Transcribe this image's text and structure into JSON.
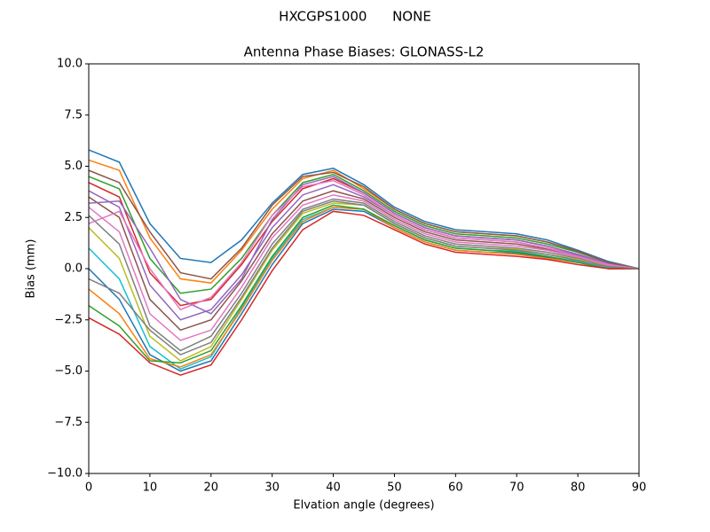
{
  "chart_data": {
    "type": "line",
    "suptitle": "HXCGPS1000      NONE",
    "title": "Antenna Phase Biases: GLONASS-L2",
    "xlabel": "Elvation angle (degrees)",
    "ylabel": "Bias (mm)",
    "x": [
      0,
      5,
      10,
      15,
      20,
      25,
      30,
      35,
      40,
      45,
      50,
      55,
      60,
      65,
      70,
      75,
      80,
      85,
      90
    ],
    "xlim": [
      0,
      90
    ],
    "xticks": [
      0,
      10,
      20,
      30,
      40,
      50,
      60,
      70,
      80,
      90
    ],
    "ylim": [
      -10,
      10
    ],
    "yticks": [
      {
        "value": -10,
        "label": "−10.0"
      },
      {
        "value": -7.5,
        "label": "−7.5"
      },
      {
        "value": -5,
        "label": "−5.0"
      },
      {
        "value": -2.5,
        "label": "−2.5"
      },
      {
        "value": 0,
        "label": "0.0"
      },
      {
        "value": 2.5,
        "label": "2.5"
      },
      {
        "value": 5,
        "label": "5.0"
      },
      {
        "value": 7.5,
        "label": "7.5"
      },
      {
        "value": 10,
        "label": "10.0"
      }
    ],
    "grid": false,
    "series": [
      {
        "color": "#1f77b4",
        "values": [
          5.8,
          5.2,
          2.2,
          0.5,
          0.3,
          1.4,
          3.2,
          4.6,
          4.9,
          4.1,
          3.0,
          2.3,
          1.9,
          1.8,
          1.7,
          1.4,
          0.9,
          0.35,
          0
        ]
      },
      {
        "color": "#ff7f0e",
        "values": [
          5.3,
          4.8,
          1.5,
          -0.5,
          -0.7,
          0.9,
          2.9,
          4.4,
          4.8,
          3.9,
          2.9,
          2.2,
          1.8,
          1.7,
          1.6,
          1.3,
          0.85,
          0.3,
          0
        ]
      },
      {
        "color": "#2ca02c",
        "values": [
          4.5,
          3.9,
          0.5,
          -1.2,
          -1.0,
          0.5,
          2.6,
          4.2,
          4.6,
          3.8,
          2.8,
          2.1,
          1.7,
          1.6,
          1.5,
          1.2,
          0.8,
          0.3,
          0
        ]
      },
      {
        "color": "#d62728",
        "values": [
          4.2,
          3.5,
          -0.2,
          -1.8,
          -1.5,
          0.2,
          2.3,
          3.9,
          4.4,
          3.7,
          2.7,
          2.0,
          1.6,
          1.5,
          1.4,
          1.1,
          0.7,
          0.25,
          0
        ]
      },
      {
        "color": "#9467bd",
        "values": [
          3.8,
          3.0,
          -0.8,
          -2.5,
          -2.0,
          -0.3,
          2.0,
          3.6,
          4.1,
          3.5,
          2.6,
          1.9,
          1.5,
          1.4,
          1.3,
          1.0,
          0.65,
          0.2,
          0
        ]
      },
      {
        "color": "#8c564b",
        "values": [
          3.5,
          2.5,
          -1.5,
          -3.0,
          -2.5,
          -0.6,
          1.7,
          3.3,
          3.8,
          3.4,
          2.5,
          1.8,
          1.4,
          1.3,
          1.2,
          0.95,
          0.6,
          0.2,
          0
        ]
      },
      {
        "color": "#e377c2",
        "values": [
          3.0,
          1.8,
          -2.2,
          -3.5,
          -3.0,
          -0.9,
          1.5,
          3.1,
          3.6,
          3.3,
          2.4,
          1.7,
          1.3,
          1.2,
          1.1,
          0.9,
          0.55,
          0.15,
          0
        ]
      },
      {
        "color": "#7f7f7f",
        "values": [
          2.6,
          1.2,
          -2.8,
          -4.0,
          -3.3,
          -1.2,
          1.2,
          2.9,
          3.4,
          3.2,
          2.3,
          1.6,
          1.2,
          1.1,
          1.0,
          0.8,
          0.5,
          0.1,
          0
        ]
      },
      {
        "color": "#bcbd22",
        "values": [
          2.0,
          0.5,
          -3.3,
          -4.5,
          -3.8,
          -1.5,
          0.9,
          2.7,
          3.2,
          3.1,
          2.2,
          1.5,
          1.1,
          1.0,
          0.95,
          0.7,
          0.45,
          0.1,
          0
        ]
      },
      {
        "color": "#17becf",
        "values": [
          1.0,
          -0.5,
          -3.8,
          -4.9,
          -4.3,
          -1.9,
          0.5,
          2.4,
          3.0,
          2.9,
          2.1,
          1.4,
          1.0,
          0.9,
          0.85,
          0.6,
          0.35,
          0.05,
          0
        ]
      },
      {
        "color": "#1f77b4",
        "values": [
          0.0,
          -1.5,
          -4.2,
          -5.0,
          -4.5,
          -2.2,
          0.2,
          2.2,
          2.9,
          2.8,
          2.0,
          1.3,
          0.9,
          0.8,
          0.75,
          0.55,
          0.3,
          0,
          0
        ]
      },
      {
        "color": "#ff7f0e",
        "values": [
          -1.0,
          -2.2,
          -4.4,
          -4.8,
          -4.2,
          -2.0,
          0.4,
          2.3,
          3.0,
          2.9,
          2.0,
          1.3,
          0.9,
          0.8,
          0.7,
          0.5,
          0.3,
          0,
          0
        ]
      },
      {
        "color": "#2ca02c",
        "values": [
          -1.8,
          -2.8,
          -4.5,
          -4.6,
          -4.0,
          -1.8,
          0.6,
          2.5,
          3.1,
          2.9,
          2.1,
          1.4,
          1.0,
          0.9,
          0.8,
          0.6,
          0.3,
          0,
          0
        ]
      },
      {
        "color": "#d62728",
        "values": [
          -2.4,
          -3.2,
          -4.6,
          -5.2,
          -4.7,
          -2.5,
          -0.1,
          1.9,
          2.8,
          2.6,
          1.9,
          1.2,
          0.8,
          0.7,
          0.6,
          0.45,
          0.2,
          0,
          0
        ]
      },
      {
        "color": "#9467bd",
        "values": [
          3.2,
          3.3,
          1.0,
          -1.5,
          -2.2,
          -0.5,
          2.4,
          4.1,
          4.5,
          3.7,
          2.7,
          2.0,
          1.6,
          1.5,
          1.4,
          1.1,
          0.7,
          0.25,
          0
        ]
      },
      {
        "color": "#8c564b",
        "values": [
          4.8,
          4.2,
          1.8,
          -0.2,
          -0.5,
          1.0,
          3.1,
          4.5,
          4.7,
          4.0,
          2.9,
          2.2,
          1.8,
          1.7,
          1.6,
          1.3,
          0.85,
          0.3,
          0
        ]
      },
      {
        "color": "#e377c2",
        "values": [
          2.2,
          2.8,
          0.0,
          -2.0,
          -1.4,
          0.3,
          2.6,
          4.0,
          4.3,
          3.6,
          2.6,
          1.9,
          1.5,
          1.4,
          1.3,
          1.0,
          0.6,
          0.2,
          0
        ]
      },
      {
        "color": "#7f7f7f",
        "values": [
          -0.5,
          -1.2,
          -3.0,
          -4.2,
          -3.6,
          -1.4,
          1.0,
          2.8,
          3.3,
          3.1,
          2.2,
          1.5,
          1.1,
          1.0,
          0.9,
          0.7,
          0.4,
          0.1,
          0
        ]
      }
    ]
  }
}
